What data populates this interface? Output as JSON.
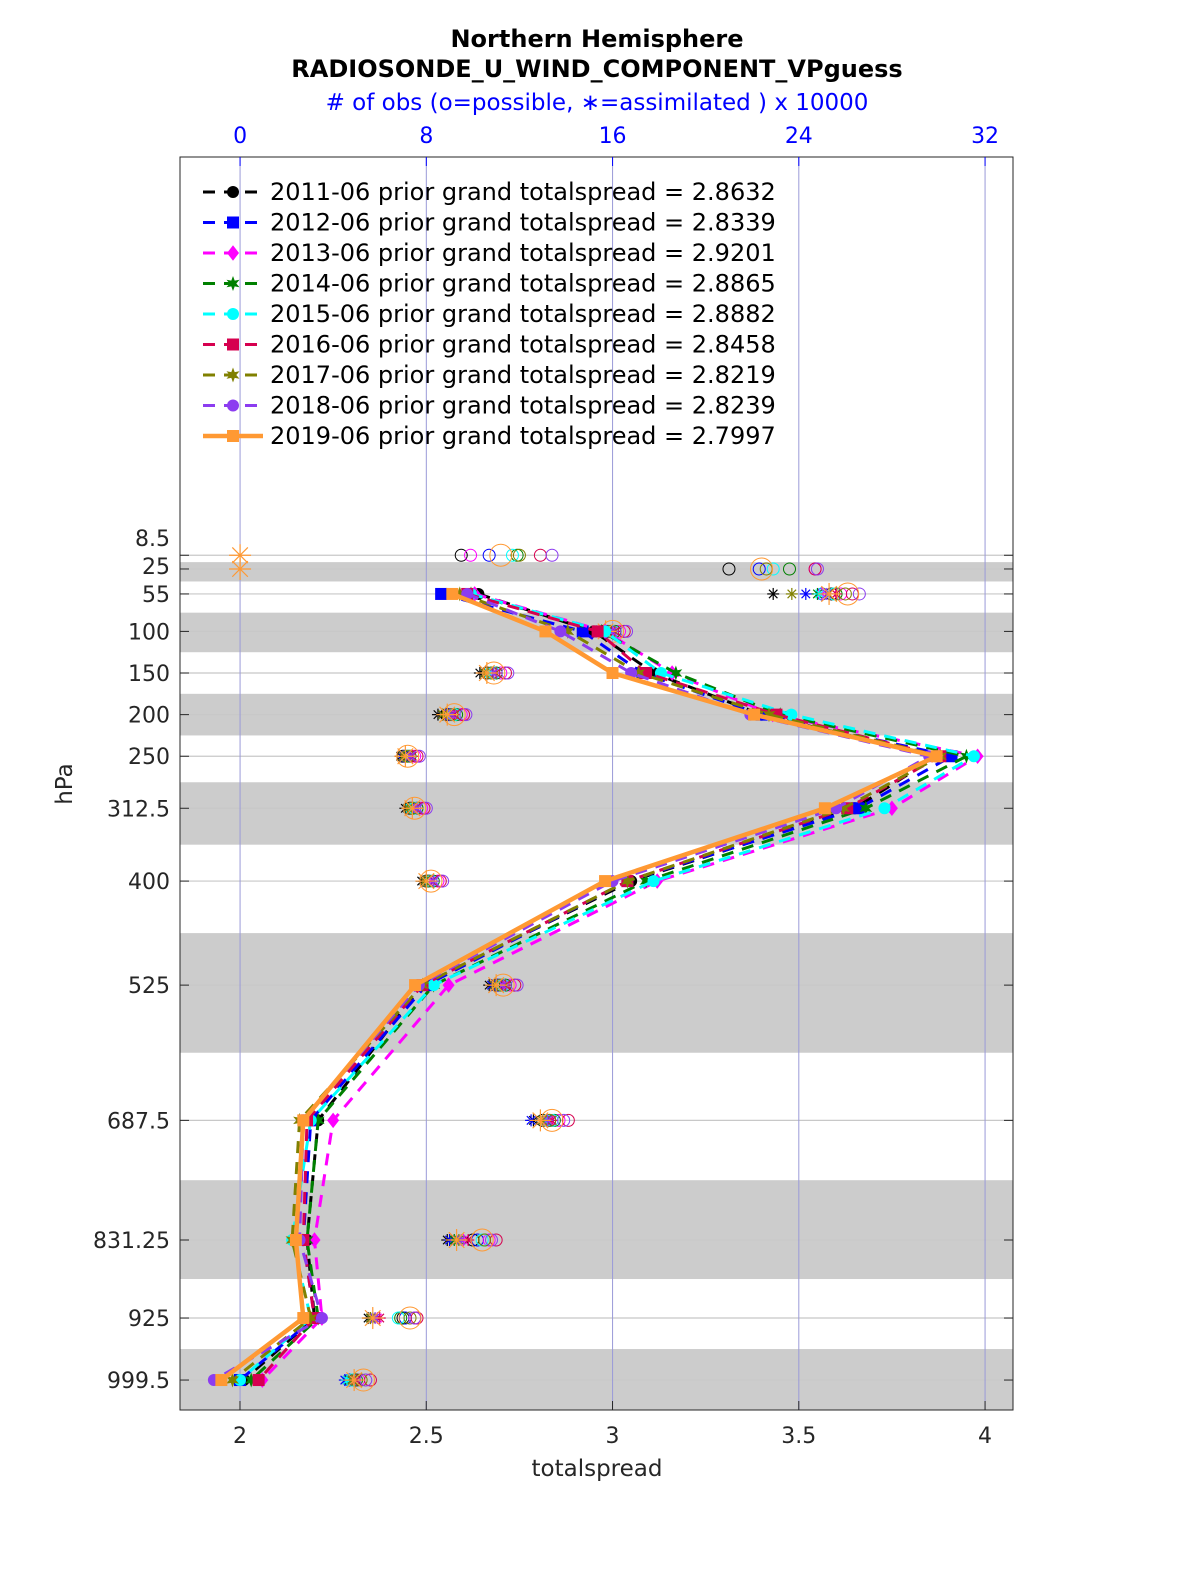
{
  "chart_data": {
    "type": "line",
    "title": "Northern Hemisphere",
    "subtitle": "RADIOSONDE_U_WIND_COMPONENT_VPguess",
    "top_axis_label": "# of obs (o=possible, ∗=assimilated ) x 10000",
    "xlabel": "totalspread",
    "ylabel": "hPa",
    "xlim": [
      1.839,
      4.075
    ],
    "xticks": [
      2,
      2.5,
      3,
      3.5,
      4
    ],
    "xtick_labels": [
      "2",
      "2.5",
      "3",
      "3.5",
      "4"
    ],
    "top_xlim": [
      -2.58,
      33.2
    ],
    "top_xticks": [
      0,
      8,
      16,
      24,
      32
    ],
    "top_xtick_labels": [
      "0",
      "8",
      "16",
      "24",
      "32"
    ],
    "ylim": [
      -470,
      1035.5
    ],
    "y_reversed": true,
    "levels": [
      8.5,
      25,
      55,
      100,
      150,
      200,
      250,
      312.5,
      400,
      525,
      687.5,
      831.25,
      925,
      999.5
    ],
    "level_labels": [
      "8.5",
      "25",
      "55",
      "100",
      "150",
      "200",
      "250",
      "312.5",
      "400",
      "525",
      "687.5",
      "831.25",
      "925",
      "999.5"
    ],
    "shaded_levels": [
      25,
      100,
      200,
      312.5,
      525,
      831.25,
      999.5
    ],
    "legend_position": "top-left",
    "series": [
      {
        "name": "2011-06 prior grand totalspread = 2.8632",
        "color": "#000000",
        "marker": "circle",
        "style": "dashed",
        "totalspread": [
          null,
          null,
          2.64,
          2.95,
          3.11,
          3.4,
          3.87,
          3.65,
          3.05,
          2.49,
          2.21,
          2.18,
          2.2,
          2.01
        ],
        "obs_possible": [
          9.5,
          21.0,
          25.4,
          15.6,
          10.6,
          8.9,
          7.0,
          7.3,
          8.0,
          11.0,
          13.0,
          10.0,
          7.0,
          4.9
        ],
        "obs_assimilated": [
          0,
          0,
          22.9,
          15.3,
          10.3,
          8.5,
          6.9,
          7.1,
          7.8,
          10.7,
          12.6,
          8.9,
          5.5,
          4.6
        ]
      },
      {
        "name": "2012-06 prior grand totalspread = 2.8339",
        "color": "#0000ff",
        "marker": "square",
        "style": "dashed",
        "totalspread": [
          null,
          null,
          2.54,
          2.92,
          3.08,
          3.4,
          3.91,
          3.66,
          3.04,
          2.5,
          2.19,
          2.17,
          2.2,
          2.0
        ],
        "obs_possible": [
          10.7,
          22.3,
          25.0,
          15.8,
          10.8,
          9.0,
          7.1,
          7.4,
          8.1,
          11.1,
          13.3,
          10.2,
          7.1,
          4.7
        ],
        "obs_assimilated": [
          0,
          0,
          24.3,
          15.5,
          10.5,
          8.7,
          7.0,
          7.2,
          7.9,
          10.8,
          12.5,
          9.0,
          5.6,
          4.5
        ]
      },
      {
        "name": "2013-06 prior grand totalspread = 2.9201",
        "color": "#ff00ff",
        "marker": "diamond",
        "style": "dashed",
        "totalspread": [
          null,
          null,
          2.63,
          2.98,
          3.16,
          3.43,
          3.98,
          3.75,
          3.12,
          2.56,
          2.25,
          2.2,
          2.22,
          2.06
        ],
        "obs_possible": [
          9.9,
          24.7,
          25.8,
          16.3,
          11.2,
          9.5,
          7.5,
          7.8,
          8.5,
          11.6,
          13.7,
          10.7,
          7.5,
          5.1
        ],
        "obs_assimilated": [
          0,
          0,
          25.0,
          15.9,
          10.9,
          9.0,
          7.3,
          7.5,
          8.2,
          11.2,
          13.3,
          9.6,
          5.9,
          4.8
        ]
      },
      {
        "name": "2014-06 prior grand totalspread = 2.8865",
        "color": "#008000",
        "marker": "star",
        "style": "dashed",
        "totalspread": [
          null,
          null,
          2.62,
          2.97,
          3.17,
          3.45,
          3.95,
          3.68,
          3.09,
          2.52,
          2.21,
          2.18,
          2.21,
          2.03
        ],
        "obs_possible": [
          11.9,
          23.6,
          25.6,
          16.1,
          11.0,
          9.3,
          7.3,
          7.6,
          8.3,
          11.4,
          13.5,
          10.5,
          6.9,
          5.0
        ],
        "obs_assimilated": [
          0,
          0,
          24.8,
          15.8,
          10.6,
          8.7,
          7.1,
          7.3,
          8.0,
          11.0,
          13.0,
          9.2,
          5.6,
          4.7
        ]
      },
      {
        "name": "2015-06 prior grand totalspread = 2.8882",
        "color": "#00ffff",
        "marker": "hexagon",
        "style": "dashed",
        "totalspread": [
          null,
          null,
          2.62,
          2.98,
          3.13,
          3.48,
          3.97,
          3.73,
          3.11,
          2.52,
          2.19,
          2.14,
          2.19,
          2.0
        ],
        "obs_possible": [
          11.7,
          22.9,
          25.5,
          16.0,
          10.9,
          9.2,
          7.2,
          7.5,
          8.2,
          11.3,
          13.4,
          10.4,
          6.8,
          4.8
        ],
        "obs_assimilated": [
          0,
          0,
          24.9,
          15.7,
          10.7,
          8.9,
          7.1,
          7.3,
          8.0,
          11.0,
          13.1,
          9.4,
          5.7,
          4.6
        ]
      },
      {
        "name": "2016-06 prior grand totalspread = 2.8458",
        "color": "#d6004f",
        "marker": "square",
        "style": "dashed",
        "totalspread": [
          null,
          null,
          2.61,
          2.96,
          3.09,
          3.44,
          3.88,
          3.63,
          3.04,
          2.49,
          2.18,
          2.17,
          2.2,
          2.05
        ],
        "obs_possible": [
          12.9,
          24.7,
          26.3,
          16.5,
          11.4,
          9.6,
          7.6,
          7.9,
          8.6,
          11.8,
          14.1,
          11.0,
          7.6,
          5.6
        ],
        "obs_assimilated": [
          0,
          0,
          25.6,
          16.1,
          11.0,
          9.2,
          7.4,
          7.6,
          8.3,
          11.4,
          13.4,
          9.8,
          6.0,
          5.0
        ]
      },
      {
        "name": "2017-06 prior grand totalspread = 2.8219",
        "color": "#808000",
        "marker": "star",
        "style": "dashed",
        "totalspread": [
          null,
          null,
          2.59,
          2.88,
          3.07,
          3.42,
          3.88,
          3.62,
          3.04,
          2.49,
          2.16,
          2.14,
          2.19,
          1.98
        ],
        "obs_possible": [
          12.0,
          22.6,
          26.0,
          15.9,
          10.8,
          9.1,
          7.2,
          7.4,
          8.1,
          11.2,
          13.3,
          10.5,
          7.3,
          5.2
        ],
        "obs_assimilated": [
          0,
          0,
          23.7,
          15.6,
          10.5,
          8.7,
          7.0,
          7.2,
          7.9,
          10.9,
          13.0,
          9.4,
          5.6,
          4.8
        ]
      },
      {
        "name": "2018-06 prior grand totalspread = 2.8239",
        "color": "#8c3cf0",
        "marker": "circle",
        "style": "dashed",
        "totalspread": [
          null,
          null,
          2.61,
          2.86,
          3.05,
          3.37,
          3.85,
          3.6,
          3.0,
          2.48,
          2.17,
          2.16,
          2.22,
          1.93
        ],
        "obs_possible": [
          13.4,
          24.8,
          26.6,
          16.6,
          11.5,
          9.7,
          7.7,
          8.0,
          8.7,
          11.9,
          13.9,
          10.8,
          7.5,
          5.4
        ],
        "obs_assimilated": [
          0,
          0,
          25.2,
          16.0,
          10.9,
          9.1,
          7.3,
          7.6,
          8.3,
          11.3,
          13.2,
          9.5,
          5.8,
          4.9
        ]
      },
      {
        "name": "2019-06 prior grand totalspread = 2.7997",
        "color": "#ff9933",
        "marker": "square",
        "style": "solid",
        "totalspread": [
          null,
          null,
          2.57,
          2.82,
          3.0,
          3.38,
          3.87,
          3.57,
          2.98,
          2.47,
          2.17,
          2.15,
          2.17,
          1.95
        ],
        "obs_possible": [
          11.2,
          22.4,
          26.1,
          16.0,
          10.9,
          9.2,
          7.2,
          7.5,
          8.2,
          11.3,
          13.4,
          10.4,
          7.3,
          5.3
        ],
        "obs_assimilated": [
          0,
          0,
          25.3,
          15.7,
          10.6,
          8.9,
          7.1,
          7.4,
          8.0,
          11.0,
          12.9,
          9.3,
          5.7,
          4.9
        ]
      }
    ]
  }
}
